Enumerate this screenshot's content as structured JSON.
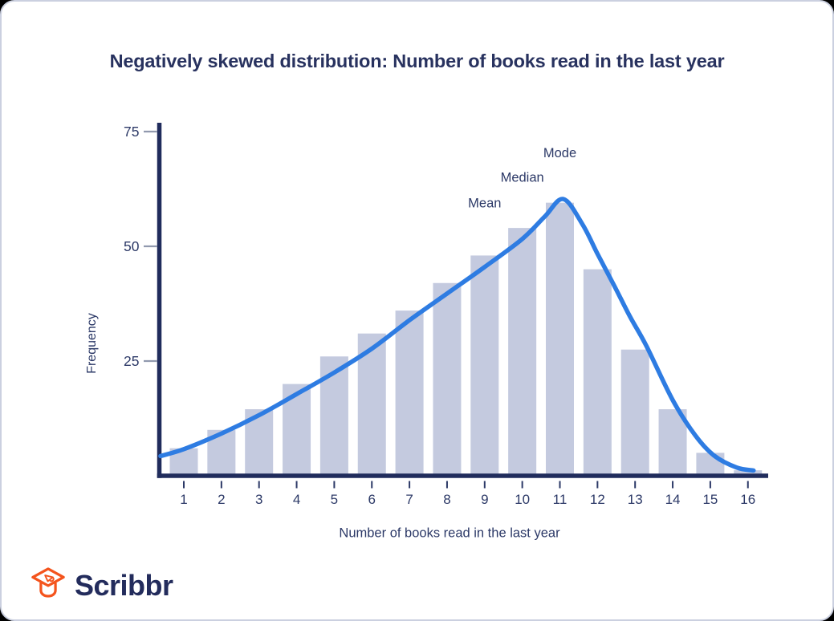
{
  "card": {
    "background": "#ffffff",
    "border_color": "#cbd0e0",
    "outside_background": "#000000"
  },
  "chart_data": {
    "type": "bar",
    "title": "Negatively skewed distribution: Number of books read in the last year",
    "xlabel": "Number of books read in the last year",
    "ylabel": "Frequency",
    "categories": [
      "1",
      "2",
      "3",
      "4",
      "5",
      "6",
      "7",
      "8",
      "9",
      "10",
      "11",
      "12",
      "13",
      "14",
      "15",
      "16"
    ],
    "values": [
      6,
      10,
      14.5,
      20,
      26,
      31,
      36,
      42,
      48,
      54,
      59.5,
      45,
      27.5,
      14.5,
      5,
      1.2
    ],
    "yticks": [
      25,
      50,
      75
    ],
    "ylim": [
      0,
      77
    ],
    "grid": false,
    "legend": null,
    "bar_color": "#c4cadf",
    "axis_color": "#202c5c",
    "tick_label_color": "#2c3967",
    "y_tick_mark_color": "#9199ae",
    "annotation_color": "#2c3967",
    "curve": {
      "color": "#2e7ce2",
      "width": 5.5,
      "points": [
        [
          0.38,
          4.3
        ],
        [
          1,
          5.8
        ],
        [
          2,
          9.2
        ],
        [
          3,
          13.2
        ],
        [
          4,
          17.8
        ],
        [
          5,
          22.5
        ],
        [
          6,
          27.7
        ],
        [
          7,
          33.9
        ],
        [
          8,
          39.7
        ],
        [
          9,
          45.5
        ],
        [
          10,
          51.6
        ],
        [
          10.6,
          56.5
        ],
        [
          11.09,
          60.3
        ],
        [
          11.6,
          54.8
        ],
        [
          12.01,
          48.2
        ],
        [
          12.44,
          41.5
        ],
        [
          12.87,
          34.6
        ],
        [
          13.3,
          28.3
        ],
        [
          14,
          16.5
        ],
        [
          14.6,
          8.8
        ],
        [
          15.1,
          4.4
        ],
        [
          15.7,
          1.8
        ],
        [
          16.15,
          1.15
        ]
      ]
    },
    "annotations": [
      {
        "label": "Mean",
        "x": 9,
        "value": 59.4
      },
      {
        "label": "Median",
        "x": 10,
        "value": 65.0
      },
      {
        "label": "Mode",
        "x": 11,
        "value": 70.4
      }
    ]
  },
  "logo": {
    "text": "Scribbr",
    "icon": "graduation-cap-icon",
    "icon_color": "#f4541d",
    "text_color": "#232c5c"
  }
}
